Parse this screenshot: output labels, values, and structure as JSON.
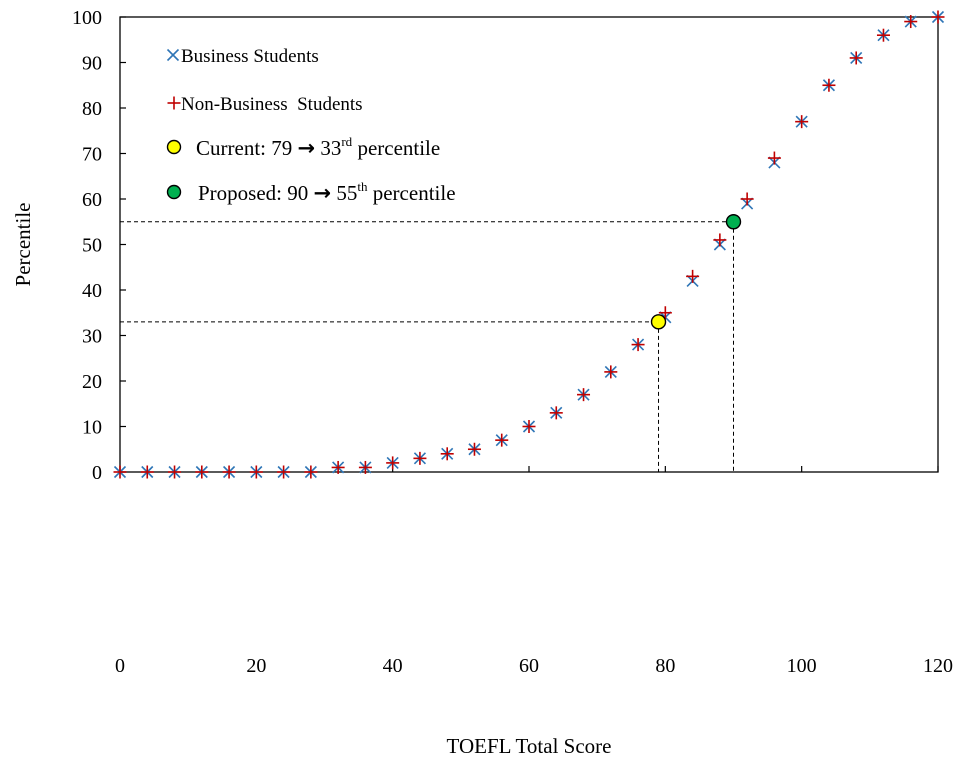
{
  "chart_data": {
    "type": "scatter",
    "xlabel": "TOEFL Total Score",
    "ylabel": "Percentile",
    "xlim": [
      0,
      120
    ],
    "ylim": [
      0,
      100
    ],
    "xticks": [
      "0",
      "20",
      "40",
      "60",
      "80",
      "100",
      "120"
    ],
    "yticks": [
      "0",
      "10",
      "20",
      "30",
      "40",
      "50",
      "60",
      "70",
      "80",
      "90",
      "100"
    ],
    "grid": false,
    "legend_position": "top-left",
    "series": [
      {
        "name": "Business Students",
        "marker": "x",
        "color": "#2e75b6",
        "points": [
          [
            0,
            0
          ],
          [
            4,
            0
          ],
          [
            8,
            0
          ],
          [
            12,
            0
          ],
          [
            16,
            0
          ],
          [
            20,
            0
          ],
          [
            24,
            0
          ],
          [
            28,
            0
          ],
          [
            32,
            1
          ],
          [
            36,
            1
          ],
          [
            40,
            2
          ],
          [
            44,
            3
          ],
          [
            48,
            4
          ],
          [
            52,
            5
          ],
          [
            56,
            7
          ],
          [
            60,
            10
          ],
          [
            64,
            13
          ],
          [
            68,
            17
          ],
          [
            72,
            22
          ],
          [
            76,
            28
          ],
          [
            80,
            34
          ],
          [
            84,
            42
          ],
          [
            88,
            50
          ],
          [
            92,
            59
          ],
          [
            96,
            68
          ],
          [
            100,
            77
          ],
          [
            104,
            85
          ],
          [
            108,
            91
          ],
          [
            112,
            96
          ],
          [
            116,
            99
          ],
          [
            120,
            100
          ]
        ]
      },
      {
        "name": "Non-Business  Students",
        "marker": "+",
        "color": "#c00000",
        "points": [
          [
            0,
            0
          ],
          [
            4,
            0
          ],
          [
            8,
            0
          ],
          [
            12,
            0
          ],
          [
            16,
            0
          ],
          [
            20,
            0
          ],
          [
            24,
            0
          ],
          [
            28,
            0
          ],
          [
            32,
            1
          ],
          [
            36,
            1
          ],
          [
            40,
            2
          ],
          [
            44,
            3
          ],
          [
            48,
            4
          ],
          [
            52,
            5
          ],
          [
            56,
            7
          ],
          [
            60,
            10
          ],
          [
            64,
            13
          ],
          [
            68,
            17
          ],
          [
            72,
            22
          ],
          [
            76,
            28
          ],
          [
            80,
            35
          ],
          [
            84,
            43
          ],
          [
            88,
            51
          ],
          [
            92,
            60
          ],
          [
            96,
            69
          ],
          [
            100,
            77
          ],
          [
            104,
            85
          ],
          [
            108,
            91
          ],
          [
            112,
            96
          ],
          [
            116,
            99
          ],
          [
            120,
            100
          ]
        ]
      }
    ],
    "highlights": [
      {
        "label": "Current: 79",
        "score": 79,
        "percentile": 33,
        "suffix": "rd",
        "tail": " percentile",
        "color": "#ffff00"
      },
      {
        "label": "Proposed: 90",
        "score": 90,
        "percentile": 55,
        "suffix": "th",
        "tail": " percentile",
        "color": "#00b050"
      }
    ],
    "arrow_glyph": "→"
  }
}
